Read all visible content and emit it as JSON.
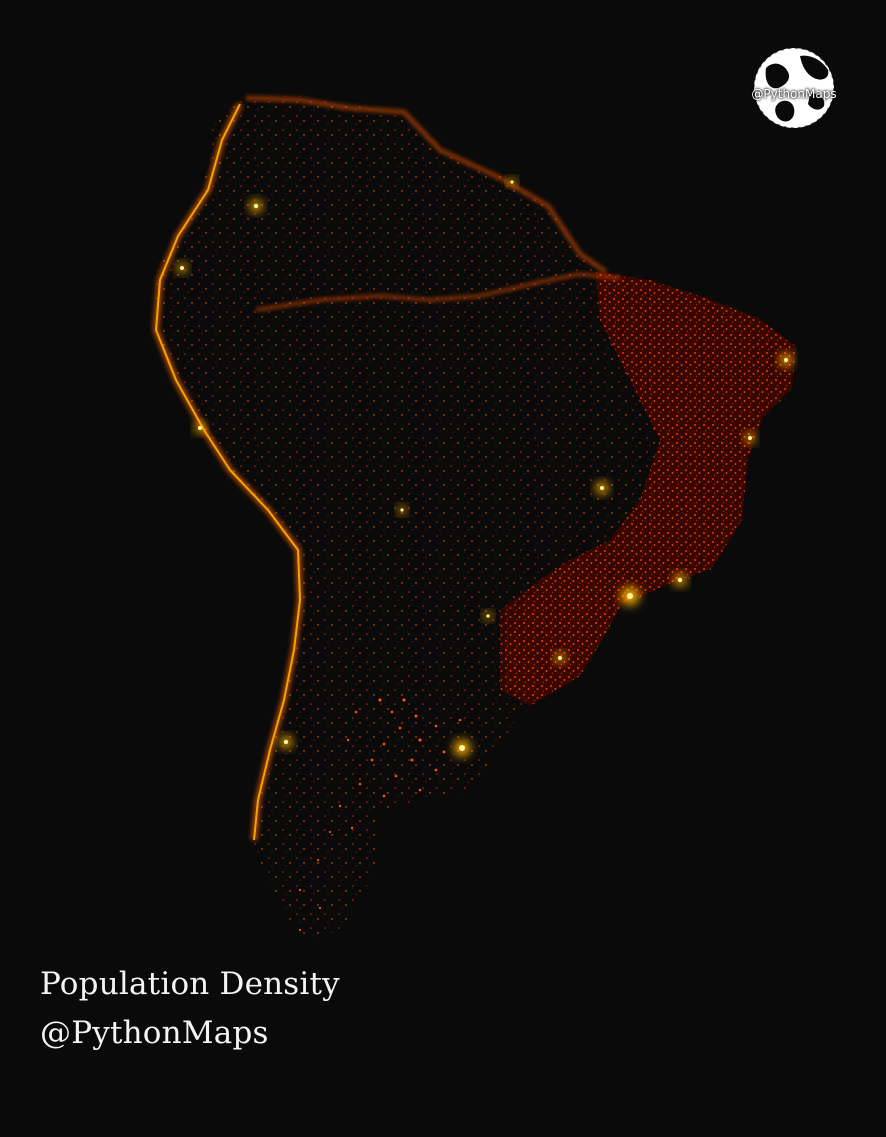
{
  "caption": {
    "title": "Population Density",
    "handle": "@PythonMaps"
  },
  "logo": {
    "text": "@PythonMaps",
    "icon": "globe-icon"
  },
  "colors": {
    "background": "#0a0a0a",
    "density_low": "#5a0a00",
    "density_mid": "#d42a00",
    "density_high": "#ff7a00",
    "density_peak": "#ffe36a",
    "caption_text": "#f4f4f4"
  }
}
